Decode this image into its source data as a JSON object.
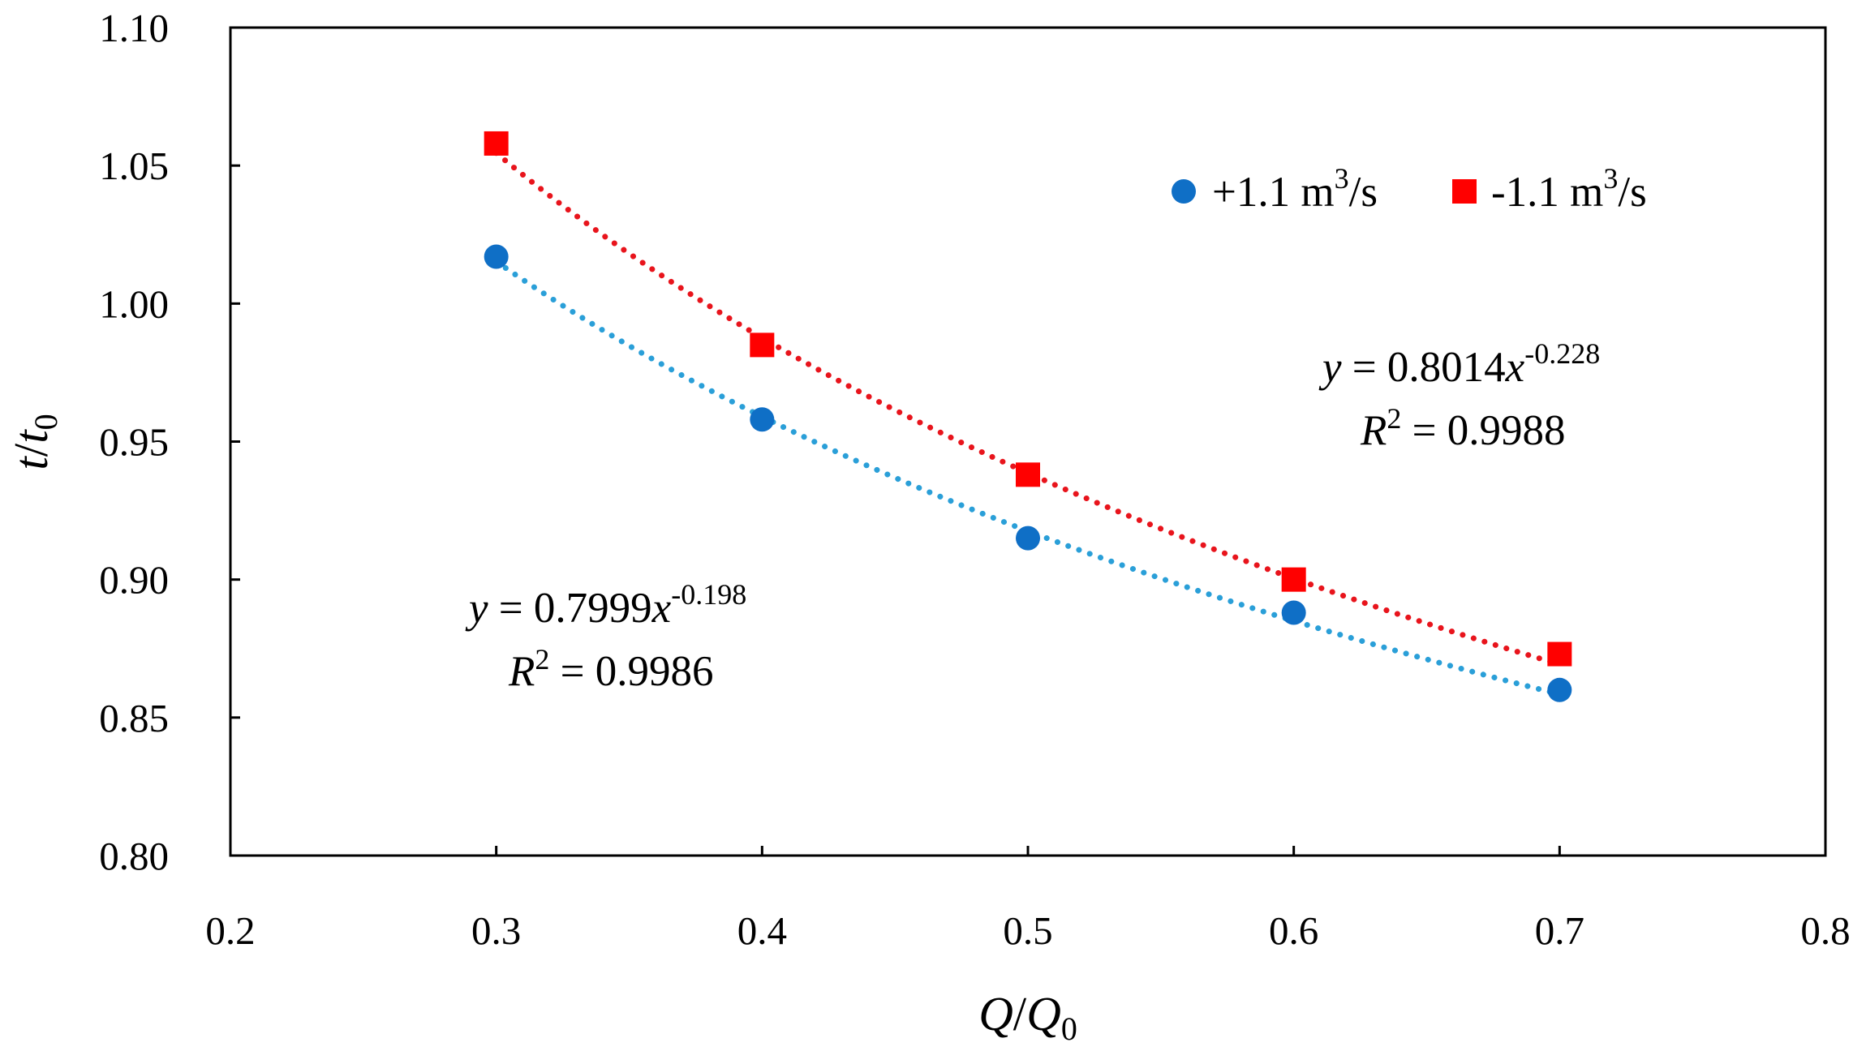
{
  "chart_data": {
    "type": "scatter",
    "title": "",
    "xlabel": {
      "main": "Q",
      "sep": "/",
      "main2": "Q",
      "sub": "0"
    },
    "ylabel": {
      "main": "t",
      "sep": "/",
      "main2": "t",
      "sub": "0"
    },
    "xlim": [
      0.2,
      0.8
    ],
    "ylim": [
      0.8,
      1.1
    ],
    "x_ticks": [
      "0.2",
      "0.3",
      "0.4",
      "0.5",
      "0.6",
      "0.7",
      "0.8"
    ],
    "y_ticks": [
      "0.80",
      "0.85",
      "0.90",
      "0.95",
      "1.00",
      "1.05",
      "1.10"
    ],
    "grid": false,
    "legend_position": "top-right",
    "series": [
      {
        "name": "+1.1 m3/s",
        "label_main": "+1.1 m",
        "label_sup": "3",
        "label_end": "/s",
        "marker": "circle",
        "color": "#0f6fc6",
        "trend_color": "#2a9fd8",
        "x": [
          0.3,
          0.4,
          0.5,
          0.6,
          0.7
        ],
        "y": [
          1.017,
          0.958,
          0.915,
          0.888,
          0.86
        ],
        "trendline": {
          "coef": 0.7999,
          "exp": -0.198,
          "eq_y": "y",
          "eq_mid": " = 0.7999",
          "eq_x": "x",
          "eq_exp": "-0.198",
          "r2_label": "R",
          "r2_sup": "2",
          "r2_value": " = 0.9986"
        }
      },
      {
        "name": "-1.1 m3/s",
        "label_main": "-1.1 m",
        "label_sup": "3",
        "label_end": "/s",
        "marker": "square",
        "color": "#ff0000",
        "trend_color": "#e8141c",
        "x": [
          0.3,
          0.4,
          0.5,
          0.6,
          0.7
        ],
        "y": [
          1.058,
          0.985,
          0.938,
          0.9,
          0.873
        ],
        "trendline": {
          "coef": 0.8014,
          "exp": -0.228,
          "eq_y": "y",
          "eq_mid": " = 0.8014",
          "eq_x": "x",
          "eq_exp": "-0.228",
          "r2_label": "R",
          "r2_sup": "2",
          "r2_value": " = 0.9988"
        }
      }
    ]
  }
}
